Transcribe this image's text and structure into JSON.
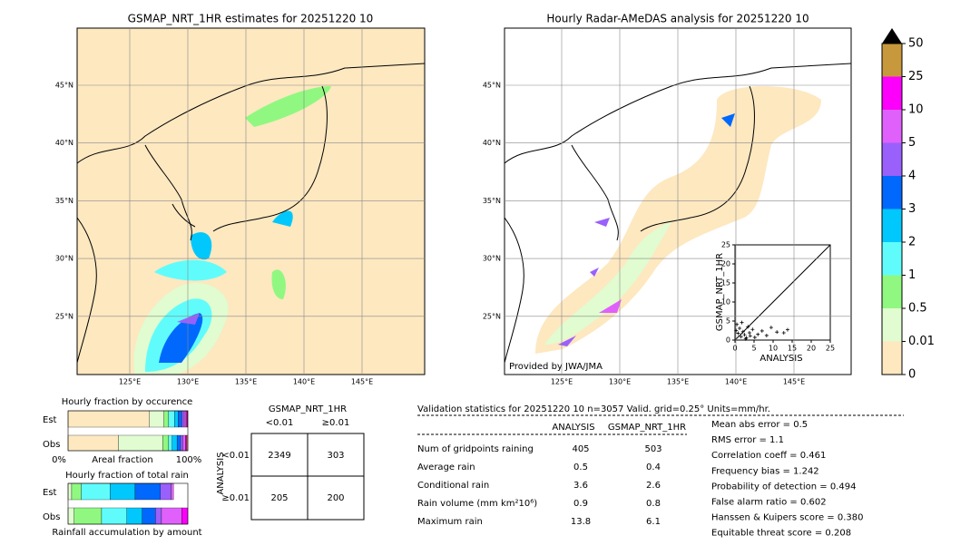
{
  "map_left": {
    "title": "GSMAP_NRT_1HR estimates for 20251220 10",
    "lat_labels": [
      "45°N",
      "40°N",
      "35°N",
      "30°N",
      "25°N"
    ],
    "lon_labels": [
      "125°E",
      "130°E",
      "135°E",
      "140°E",
      "145°E"
    ]
  },
  "map_right": {
    "title": "Hourly Radar-AMeDAS analysis for 20251220 10",
    "lat_labels": [
      "45°N",
      "40°N",
      "35°N",
      "30°N",
      "25°N"
    ],
    "lon_labels": [
      "125°E",
      "130°E",
      "135°E",
      "140°E",
      "145°E"
    ],
    "credit": "Provided by JWA/JMA"
  },
  "colorbar": {
    "ticks": [
      0,
      0.01,
      0.5,
      1,
      2,
      3,
      4,
      5,
      10,
      25,
      50
    ],
    "colors": [
      "#fde8c0",
      "#e0fcd0",
      "#90f880",
      "#60fcfc",
      "#00c8fc",
      "#0068fc",
      "#9a60fc",
      "#e060fc",
      "#fc00fc",
      "#c8983c"
    ]
  },
  "scatter": {
    "xlabel": "ANALYSIS",
    "ylabel": "GSMAP_NRT_1HR",
    "xlim": [
      0,
      25
    ],
    "ylim": [
      0,
      25
    ],
    "xticks": [
      0,
      5,
      10,
      15,
      20,
      25
    ],
    "yticks": [
      0,
      5,
      10,
      15,
      20,
      25
    ],
    "x": [
      0.3,
      0.8,
      1.2,
      1.6,
      2.1,
      2.5,
      3,
      3.4,
      4,
      4.6,
      5.2,
      6,
      7.1,
      8.3,
      9.5,
      11,
      12.8,
      13.8,
      0.5,
      1.8,
      2.8,
      3.8
    ],
    "y": [
      2.5,
      1.8,
      3.1,
      0.9,
      2.2,
      1.4,
      0.6,
      3.5,
      1.1,
      2.8,
      0.7,
      1.5,
      2.4,
      1.2,
      3.3,
      2.1,
      1.9,
      2.7,
      4.1,
      4.6,
      0.3,
      1.9
    ]
  },
  "occurrence": {
    "title": "Hourly fraction by occurence",
    "est_label": "Est",
    "obs_label": "Obs",
    "xlabel": "Areal fraction",
    "left": "0%",
    "right": "100%",
    "est": [
      68,
      12,
      4,
      5,
      3,
      3,
      2,
      1.5,
      1,
      0.5
    ],
    "obs": [
      42,
      37,
      5,
      3,
      4,
      3,
      2,
      2,
      1,
      1
    ]
  },
  "amount": {
    "title": "Hourly fraction of total rain",
    "est_label": "Est",
    "obs_label": "Obs",
    "xlabel": "Rainfall accumulation by amount",
    "est": [
      0,
      3,
      8,
      24,
      21,
      21,
      9,
      2,
      0,
      0
    ],
    "obs": [
      0,
      5,
      23,
      21,
      13,
      11,
      5,
      17,
      5,
      0
    ]
  },
  "contingency": {
    "title": "GSMAP_NRT_1HR",
    "cols": [
      "<0.01",
      "≥0.01"
    ],
    "ylabel": "ANALYSIS",
    "rows": [
      "<0.01",
      "≥0.01"
    ],
    "cells": [
      [
        2349,
        303
      ],
      [
        205,
        200
      ]
    ]
  },
  "validation": {
    "title": "Validation statistics for 20251220 10  n=3057 Valid. grid=0.25° Units=mm/hr.",
    "columns": [
      "ANALYSIS",
      "GSMAP_NRT_1HR"
    ],
    "rows": [
      [
        "Num of gridpoints raining",
        405,
        503
      ],
      [
        "Average rain",
        0.5,
        0.4
      ],
      [
        "Conditional rain",
        3.6,
        2.6
      ],
      [
        "Rain volume (mm km²10⁶)",
        0.9,
        0.8
      ],
      [
        "Maximum rain",
        13.8,
        6.1
      ]
    ],
    "scores": [
      "Mean abs error =    0.5",
      "RMS error =    1.1",
      "Correlation coeff =  0.461",
      "Frequency bias =  1.242",
      "Probability of detection =  0.494",
      "False alarm ratio =  0.602",
      "Hanssen & Kuipers score =  0.380",
      "Equitable threat score =  0.208"
    ]
  }
}
